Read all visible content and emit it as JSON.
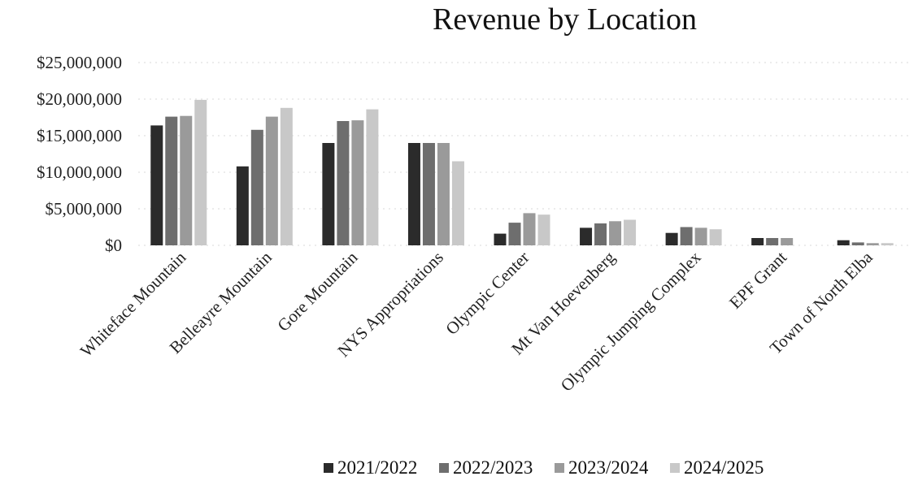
{
  "chart_data": {
    "type": "bar",
    "title": "Revenue by Location",
    "xlabel": "",
    "ylabel": "",
    "ylim": [
      0,
      25000000
    ],
    "yticks": [
      0,
      5000000,
      10000000,
      15000000,
      20000000,
      25000000
    ],
    "ytick_labels": [
      "$0",
      "$5,000,000",
      "$10,000,000",
      "$15,000,000",
      "$20,000,000",
      "$25,000,000"
    ],
    "categories": [
      "Whiteface Mountain",
      "Belleayre Mountain",
      "Gore Mountain",
      "NYS Appropriations",
      "Olympic Center",
      "Mt Van Hoevenberg",
      "Olympic Jumping Complex",
      "EPF Grant",
      "Town of North Elba"
    ],
    "series": [
      {
        "name": "2021/2022",
        "color": "#2b2b2b",
        "values": [
          16400000,
          10800000,
          14000000,
          14000000,
          1600000,
          2400000,
          1700000,
          1000000,
          700000
        ]
      },
      {
        "name": "2022/2023",
        "color": "#6e6e6e",
        "values": [
          17600000,
          15800000,
          17000000,
          14000000,
          3100000,
          3000000,
          2500000,
          1000000,
          400000
        ]
      },
      {
        "name": "2023/2024",
        "color": "#9a9a9a",
        "values": [
          17700000,
          17600000,
          17100000,
          14000000,
          4400000,
          3300000,
          2400000,
          1000000,
          300000
        ]
      },
      {
        "name": "2024/2025",
        "color": "#c8c8c8",
        "values": [
          19900000,
          18800000,
          18600000,
          11500000,
          4200000,
          3500000,
          2200000,
          0,
          300000
        ]
      }
    ],
    "grid": true,
    "legend_position": "bottom"
  }
}
